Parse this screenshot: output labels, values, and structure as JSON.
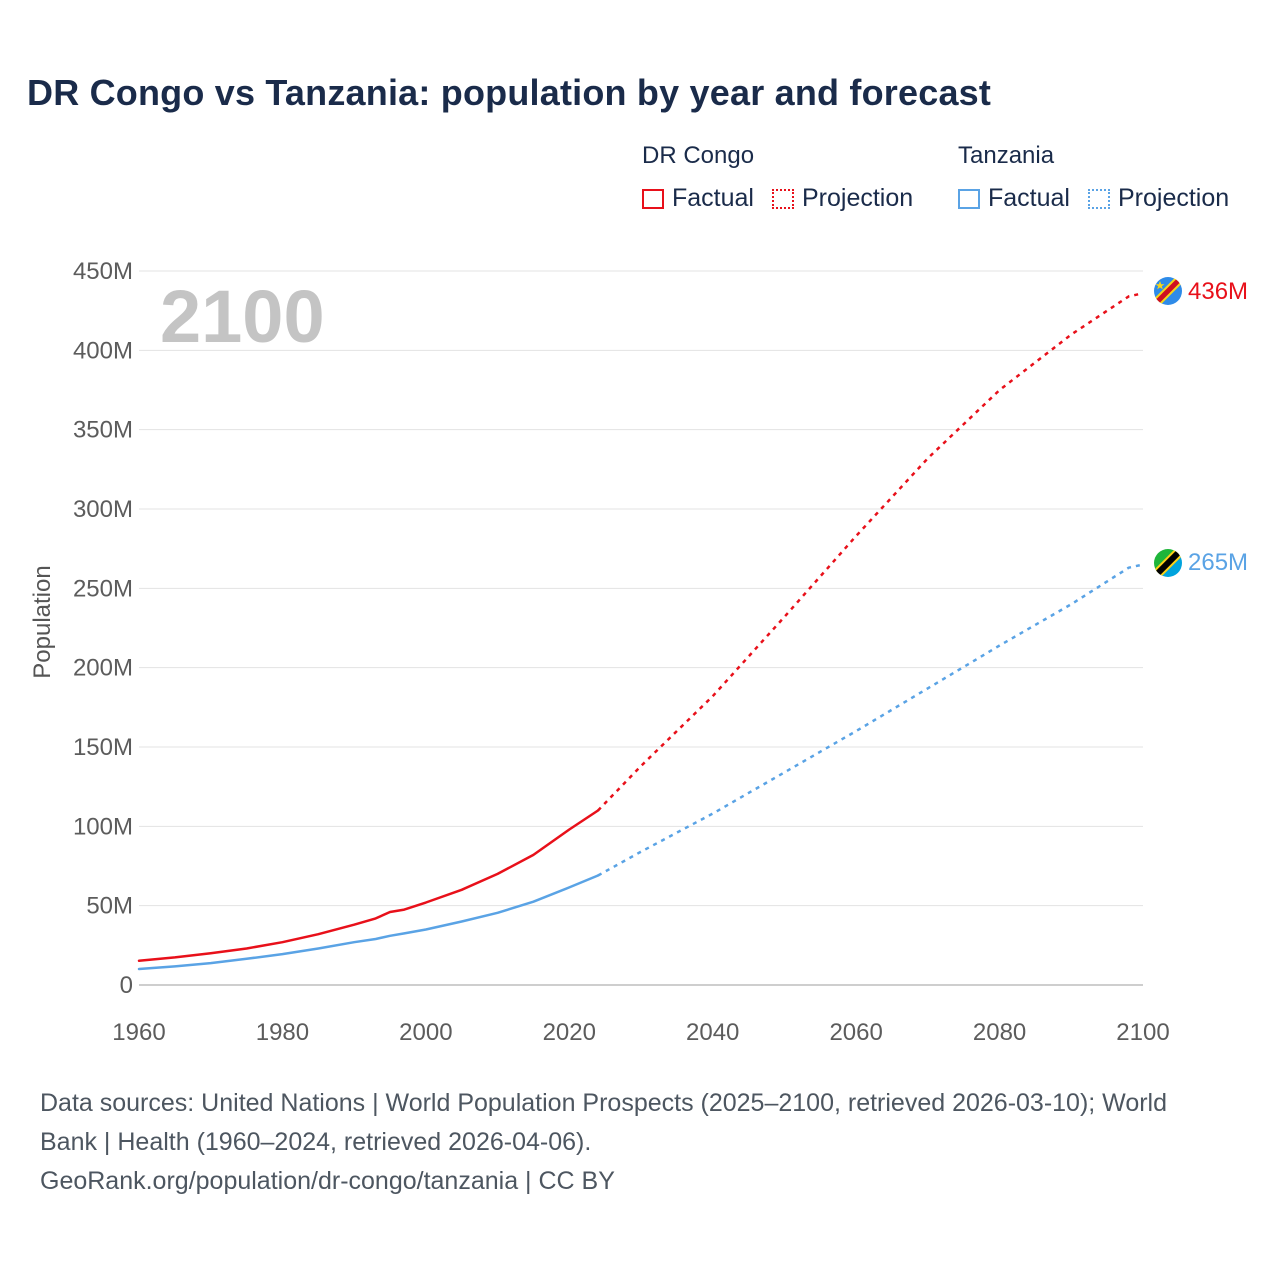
{
  "chart_data": {
    "type": "line",
    "title": "DR Congo vs Tanzania: population by year and forecast",
    "ylabel": "Population",
    "xlabel": "",
    "year_watermark": "2100",
    "xlim": [
      1960,
      2100
    ],
    "ylim": [
      0,
      450000000
    ],
    "x_ticks": [
      "1960",
      "1980",
      "2000",
      "2020",
      "2040",
      "2060",
      "2080",
      "2100"
    ],
    "y_ticks": [
      "0",
      "50M",
      "100M",
      "150M",
      "200M",
      "250M",
      "300M",
      "350M",
      "400M",
      "450M"
    ],
    "grid": true,
    "legend_position": "top-right",
    "series": [
      {
        "name": "DR Congo",
        "color": "#e8101a",
        "end_label": "436M",
        "flag_icon": "dr-congo-flag-icon",
        "factual": {
          "x": [
            1960,
            1965,
            1970,
            1975,
            1980,
            1985,
            1990,
            1993,
            1995,
            1997,
            2000,
            2005,
            2010,
            2015,
            2020,
            2024
          ],
          "y": [
            15.3,
            17.4,
            20.0,
            23.0,
            27.0,
            32.0,
            38.0,
            42.0,
            46.0,
            47.5,
            52.0,
            60.0,
            70.0,
            82.0,
            98.0,
            110.0
          ]
        },
        "projection": {
          "x": [
            2024,
            2030,
            2040,
            2050,
            2060,
            2070,
            2080,
            2090,
            2098,
            2100
          ],
          "y": [
            110.0,
            138.0,
            182.0,
            232.0,
            283.0,
            332.0,
            375.0,
            410.0,
            434.0,
            436.0
          ]
        }
      },
      {
        "name": "Tanzania",
        "color": "#5aa3e5",
        "end_label": "265M",
        "flag_icon": "tanzania-flag-icon",
        "factual": {
          "x": [
            1960,
            1965,
            1970,
            1975,
            1980,
            1985,
            1990,
            1993,
            1995,
            1997,
            2000,
            2005,
            2010,
            2015,
            2020,
            2024
          ],
          "y": [
            10.1,
            11.7,
            13.8,
            16.5,
            19.5,
            23.0,
            27.0,
            29.0,
            31.0,
            32.5,
            35.0,
            40.0,
            45.5,
            52.5,
            61.5,
            69.0
          ]
        },
        "projection": {
          "x": [
            2024,
            2030,
            2040,
            2050,
            2060,
            2070,
            2080,
            2090,
            2098,
            2100
          ],
          "y": [
            69.0,
            84.0,
            108.0,
            134.0,
            160.0,
            187.0,
            214.0,
            240.0,
            263.0,
            265.0
          ]
        }
      }
    ]
  },
  "legend": {
    "groups": [
      {
        "name": "DR Congo",
        "factual_label": "Factual",
        "projection_label": "Projection",
        "color": "#e8101a"
      },
      {
        "name": "Tanzania",
        "factual_label": "Factual",
        "projection_label": "Projection",
        "color": "#5aa3e5"
      }
    ]
  },
  "footer": {
    "line1": "Data sources: United Nations | World Population Prospects (2025–2100, retrieved 2026-03-10); World",
    "line2": "Bank | Health (1960–2024, retrieved 2026-04-06).",
    "line3": "GeoRank.org/population/dr-congo/tanzania | CC BY"
  }
}
